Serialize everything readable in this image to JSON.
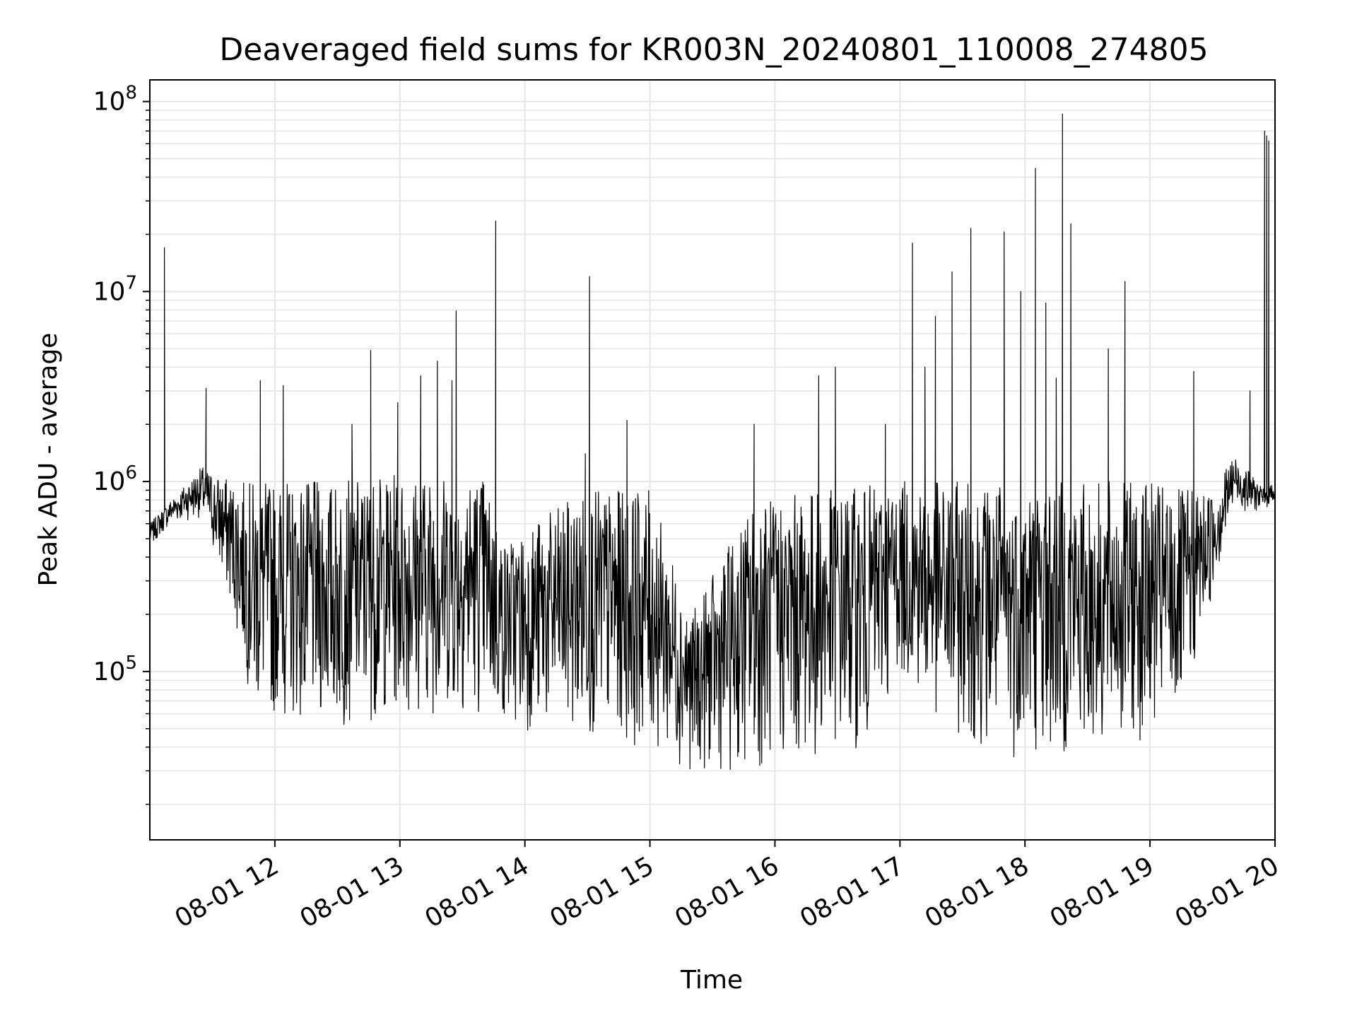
{
  "chart_data": {
    "type": "line",
    "title": "Deaveraged field sums for KR003N_20240801_110008_274805",
    "xlabel": "Time",
    "ylabel": "Peak ADU - average",
    "yscale": "log",
    "grid": true,
    "line_color": "#000000",
    "grid_color": "#e6e6e6",
    "xlim": [
      "2024-08-01 11:00",
      "2024-08-01 20:00"
    ],
    "ylim": [
      13000,
      130000000
    ],
    "x_ticks": [
      {
        "value": "2024-08-01 12:00",
        "label": "08-01 12"
      },
      {
        "value": "2024-08-01 13:00",
        "label": "08-01 13"
      },
      {
        "value": "2024-08-01 14:00",
        "label": "08-01 14"
      },
      {
        "value": "2024-08-01 15:00",
        "label": "08-01 15"
      },
      {
        "value": "2024-08-01 16:00",
        "label": "08-01 16"
      },
      {
        "value": "2024-08-01 17:00",
        "label": "08-01 17"
      },
      {
        "value": "2024-08-01 18:00",
        "label": "08-01 18"
      },
      {
        "value": "2024-08-01 19:00",
        "label": "08-01 19"
      },
      {
        "value": "2024-08-01 20:00",
        "label": "08-01 20"
      }
    ],
    "y_ticks": [
      {
        "value": 100000,
        "base": "10",
        "exp": "5"
      },
      {
        "value": 1000000,
        "base": "10",
        "exp": "6"
      },
      {
        "value": 10000000,
        "base": "10",
        "exp": "7"
      },
      {
        "value": 100000000,
        "base": "10",
        "exp": "8"
      }
    ],
    "envelope": {
      "x": [
        "2024-08-01 11:00",
        "2024-08-01 11:10",
        "2024-08-01 11:25",
        "2024-08-01 11:40",
        "2024-08-01 11:50",
        "2024-08-01 12:30",
        "2024-08-01 13:00",
        "2024-08-01 13:40",
        "2024-08-01 13:50",
        "2024-08-01 14:30",
        "2024-08-01 15:00",
        "2024-08-01 15:20",
        "2024-08-01 15:50",
        "2024-08-01 16:20",
        "2024-08-01 16:45",
        "2024-08-01 17:00",
        "2024-08-01 17:20",
        "2024-08-01 17:50",
        "2024-08-01 18:30",
        "2024-08-01 19:00",
        "2024-08-01 19:15",
        "2024-08-01 19:30",
        "2024-08-01 19:40",
        "2024-08-01 19:55",
        "2024-08-01 20:00"
      ],
      "high": [
        600000,
        800000,
        1200000,
        1000000,
        1000000,
        1000000,
        1100000,
        1100000,
        500000,
        900000,
        900000,
        200000,
        800000,
        900000,
        950000,
        1000000,
        1000000,
        1000000,
        1000000,
        1000000,
        900000,
        900000,
        1400000,
        900000,
        1000000
      ],
      "low": [
        450000,
        600000,
        650000,
        200000,
        60000,
        50000,
        60000,
        60000,
        50000,
        45000,
        40000,
        30000,
        30000,
        35000,
        40000,
        100000,
        50000,
        35000,
        35000,
        45000,
        55000,
        250000,
        700000,
        700000,
        800000
      ]
    },
    "spikes": [
      {
        "x": "2024-08-01 11:07",
        "y": 17000000
      },
      {
        "x": "2024-08-01 11:27",
        "y": 3100000
      },
      {
        "x": "2024-08-01 11:53",
        "y": 3400000
      },
      {
        "x": "2024-08-01 12:04",
        "y": 3200000
      },
      {
        "x": "2024-08-01 12:37",
        "y": 2000000
      },
      {
        "x": "2024-08-01 12:46",
        "y": 4900000
      },
      {
        "x": "2024-08-01 12:59",
        "y": 2600000
      },
      {
        "x": "2024-08-01 13:10",
        "y": 3600000
      },
      {
        "x": "2024-08-01 13:18",
        "y": 4300000
      },
      {
        "x": "2024-08-01 13:25",
        "y": 3400000
      },
      {
        "x": "2024-08-01 13:27",
        "y": 7900000
      },
      {
        "x": "2024-08-01 13:46",
        "y": 23500000
      },
      {
        "x": "2024-08-01 14:29",
        "y": 1400000
      },
      {
        "x": "2024-08-01 14:31",
        "y": 12000000
      },
      {
        "x": "2024-08-01 14:49",
        "y": 2100000
      },
      {
        "x": "2024-08-01 15:50",
        "y": 2000000
      },
      {
        "x": "2024-08-01 16:21",
        "y": 3600000
      },
      {
        "x": "2024-08-01 16:29",
        "y": 4000000
      },
      {
        "x": "2024-08-01 16:53",
        "y": 2000000
      },
      {
        "x": "2024-08-01 17:06",
        "y": 18000000
      },
      {
        "x": "2024-08-01 17:12",
        "y": 4000000
      },
      {
        "x": "2024-08-01 17:17",
        "y": 7400000
      },
      {
        "x": "2024-08-01 17:25",
        "y": 12700000
      },
      {
        "x": "2024-08-01 17:34",
        "y": 21500000
      },
      {
        "x": "2024-08-01 17:50",
        "y": 20600000
      },
      {
        "x": "2024-08-01 17:58",
        "y": 10000000
      },
      {
        "x": "2024-08-01 18:05",
        "y": 44500000
      },
      {
        "x": "2024-08-01 18:10",
        "y": 8700000
      },
      {
        "x": "2024-08-01 18:15",
        "y": 3500000
      },
      {
        "x": "2024-08-01 18:18",
        "y": 86000000
      },
      {
        "x": "2024-08-01 18:22",
        "y": 22700000
      },
      {
        "x": "2024-08-01 18:40",
        "y": 5000000
      },
      {
        "x": "2024-08-01 18:48",
        "y": 11300000
      },
      {
        "x": "2024-08-01 19:21",
        "y": 3800000
      },
      {
        "x": "2024-08-01 19:48",
        "y": 3000000
      },
      {
        "x": "2024-08-01 19:55",
        "y": 70000000
      },
      {
        "x": "2024-08-01 19:56",
        "y": 66000000
      },
      {
        "x": "2024-08-01 19:57",
        "y": 62000000
      }
    ]
  }
}
